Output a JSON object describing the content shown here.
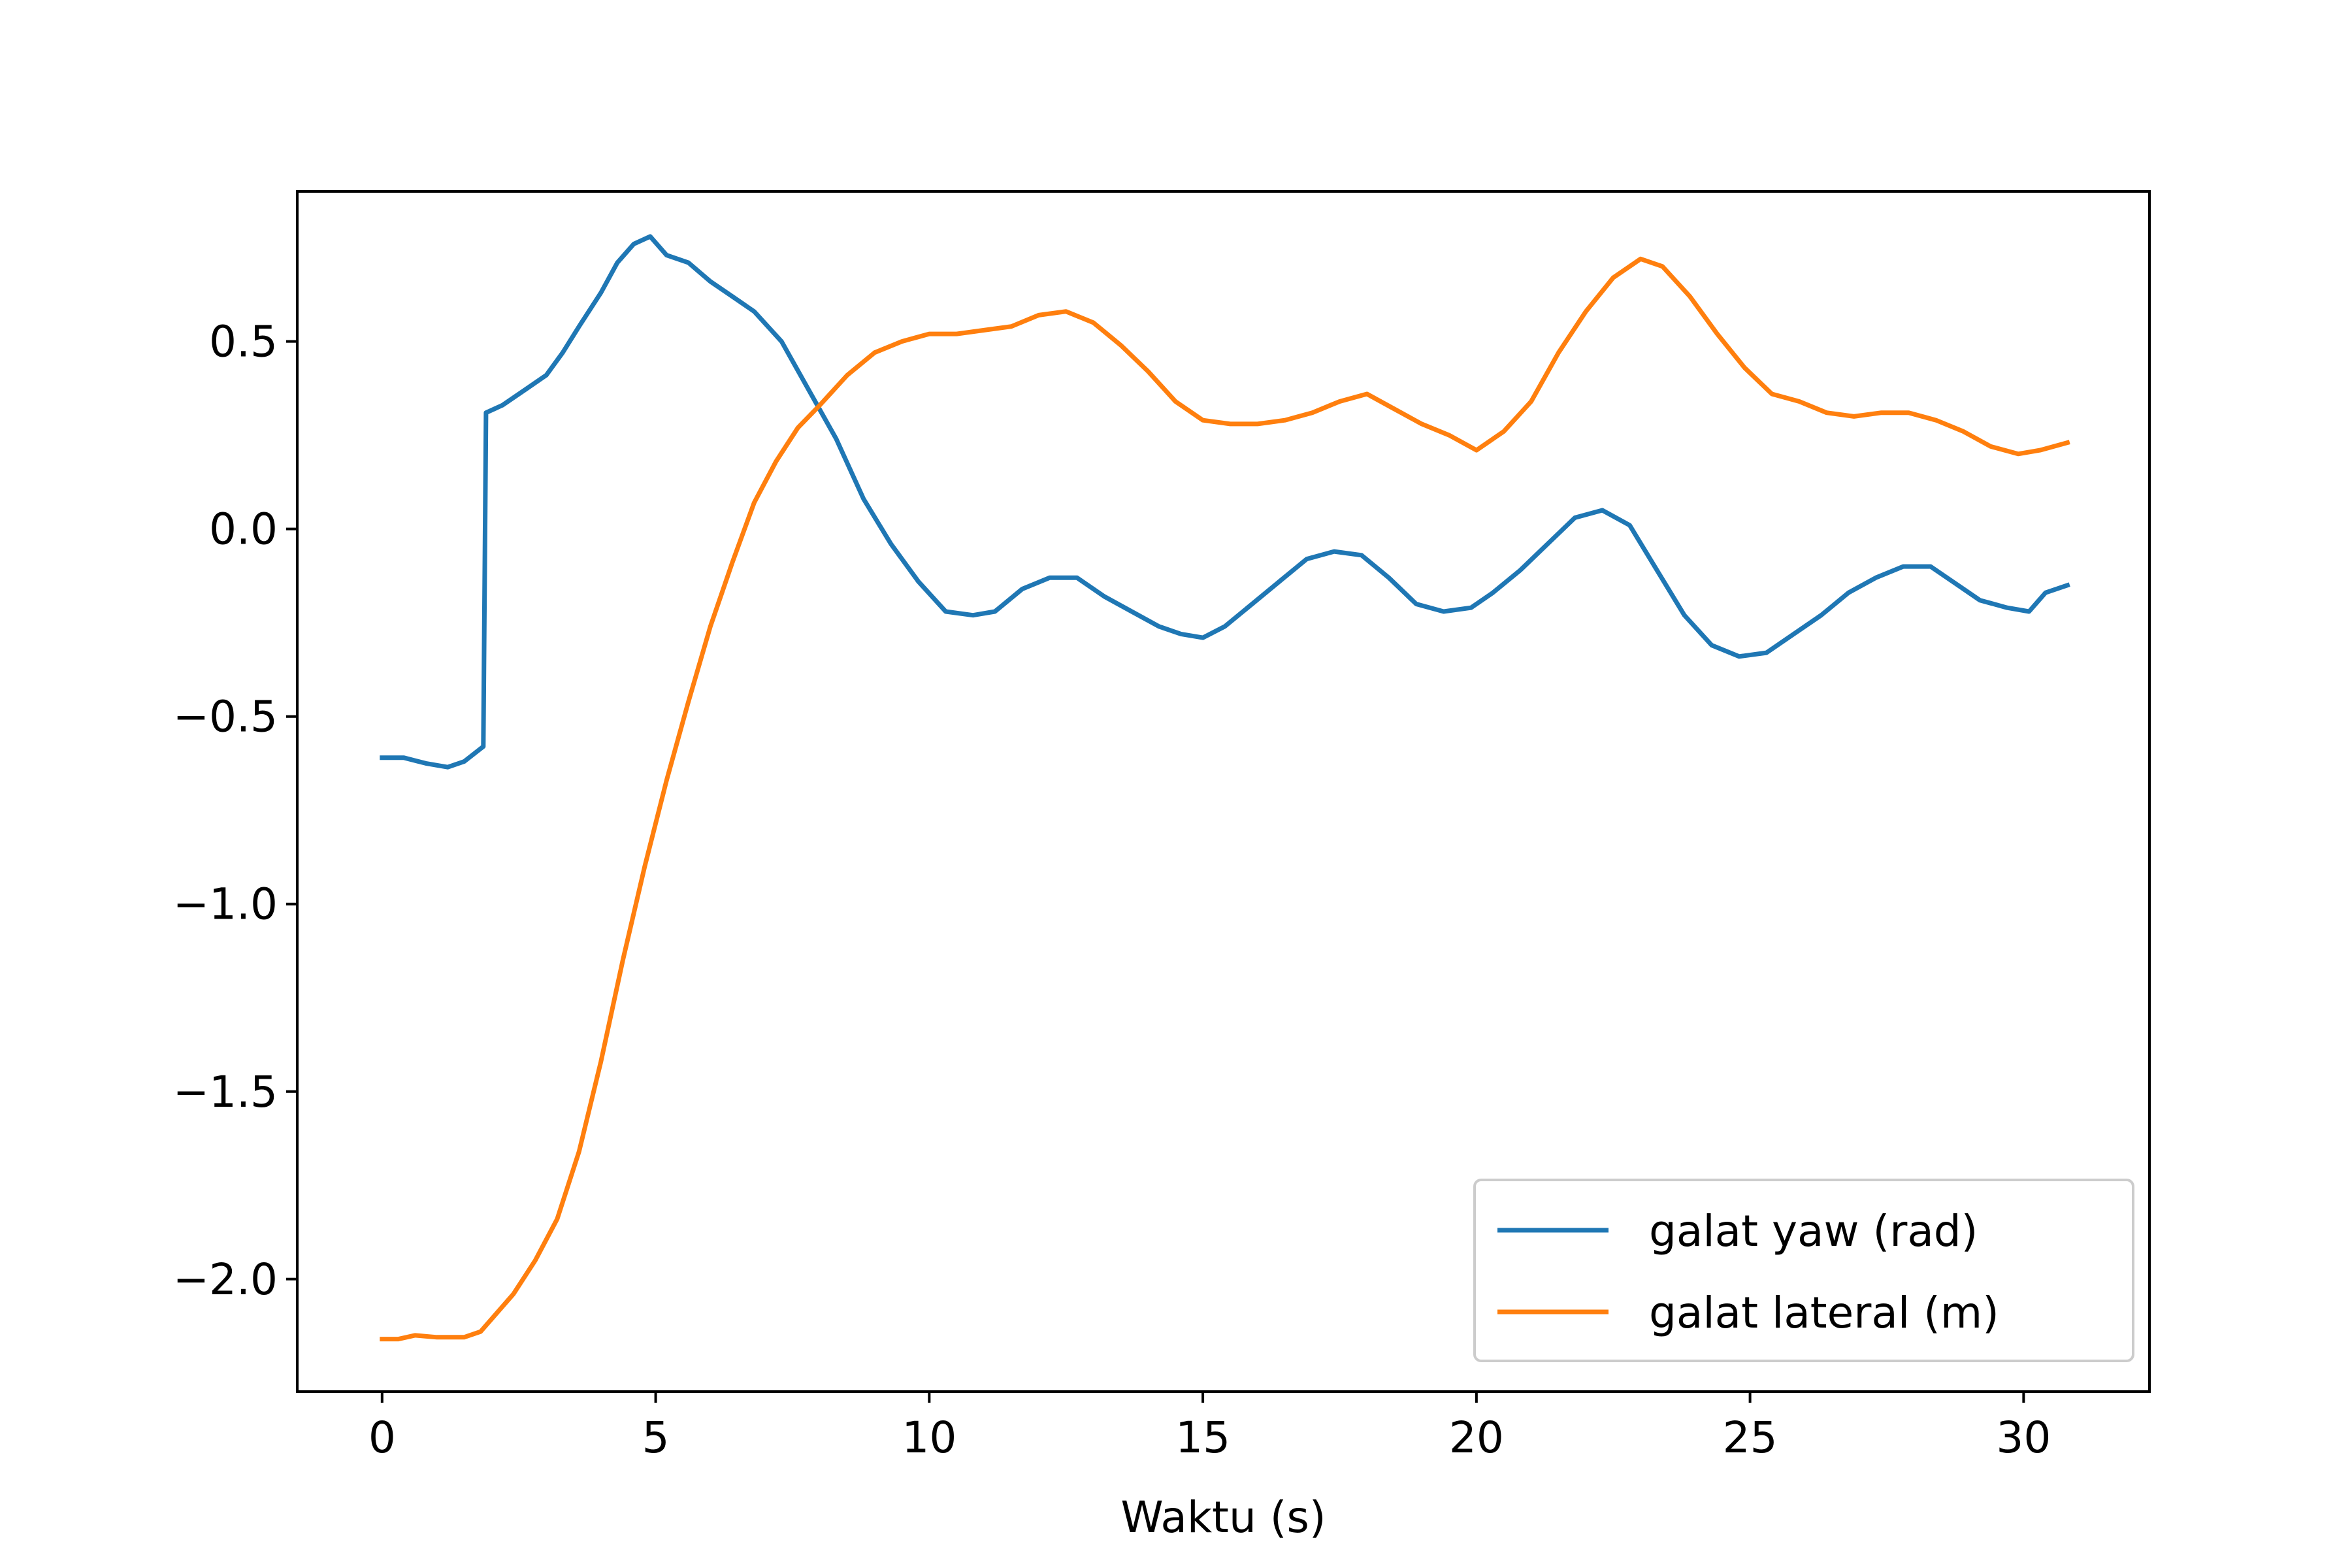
{
  "chart_data": {
    "type": "line",
    "title": "",
    "xlabel": "Waktu (s)",
    "ylabel": "",
    "xlim": [
      -1.55,
      32.3
    ],
    "ylim": [
      -2.3,
      0.9
    ],
    "xticks": [
      0,
      5,
      10,
      15,
      20,
      25,
      30
    ],
    "yticks": [
      -2.0,
      -1.5,
      -1.0,
      -0.5,
      0.0,
      0.5
    ],
    "xtick_labels": [
      "0",
      "5",
      "10",
      "15",
      "20",
      "25",
      "30"
    ],
    "ytick_labels": [
      "−2.0",
      "−1.5",
      "−1.0",
      "−0.5",
      "0.0",
      "0.5"
    ],
    "grid": false,
    "legend_position": "lower right",
    "series": [
      {
        "name": "galat yaw (rad)",
        "color": "#1f77b4",
        "points": [
          [
            0,
            -0.61
          ],
          [
            0.4,
            -0.61
          ],
          [
            0.8,
            -0.625
          ],
          [
            1.2,
            -0.635
          ],
          [
            1.5,
            -0.62
          ],
          [
            1.85,
            -0.58
          ],
          [
            1.9,
            0.31
          ],
          [
            2.2,
            0.33
          ],
          [
            2.6,
            0.37
          ],
          [
            3.0,
            0.41
          ],
          [
            3.3,
            0.47
          ],
          [
            3.6,
            0.54
          ],
          [
            4.0,
            0.63
          ],
          [
            4.3,
            0.71
          ],
          [
            4.6,
            0.76
          ],
          [
            4.9,
            0.78
          ],
          [
            5.2,
            0.73
          ],
          [
            5.6,
            0.71
          ],
          [
            6.0,
            0.66
          ],
          [
            6.4,
            0.62
          ],
          [
            6.8,
            0.58
          ],
          [
            7.3,
            0.5
          ],
          [
            7.8,
            0.37
          ],
          [
            8.3,
            0.24
          ],
          [
            8.8,
            0.08
          ],
          [
            9.3,
            -0.04
          ],
          [
            9.8,
            -0.14
          ],
          [
            10.3,
            -0.22
          ],
          [
            10.8,
            -0.23
          ],
          [
            11.2,
            -0.22
          ],
          [
            11.7,
            -0.16
          ],
          [
            12.2,
            -0.13
          ],
          [
            12.7,
            -0.13
          ],
          [
            13.2,
            -0.18
          ],
          [
            13.7,
            -0.22
          ],
          [
            14.2,
            -0.26
          ],
          [
            14.6,
            -0.28
          ],
          [
            15.0,
            -0.29
          ],
          [
            15.4,
            -0.26
          ],
          [
            15.9,
            -0.2
          ],
          [
            16.4,
            -0.14
          ],
          [
            16.9,
            -0.08
          ],
          [
            17.4,
            -0.06
          ],
          [
            17.9,
            -0.07
          ],
          [
            18.4,
            -0.13
          ],
          [
            18.9,
            -0.2
          ],
          [
            19.4,
            -0.22
          ],
          [
            19.9,
            -0.21
          ],
          [
            20.3,
            -0.17
          ],
          [
            20.8,
            -0.11
          ],
          [
            21.3,
            -0.04
          ],
          [
            21.8,
            0.03
          ],
          [
            22.3,
            0.05
          ],
          [
            22.8,
            0.01
          ],
          [
            23.3,
            -0.11
          ],
          [
            23.8,
            -0.23
          ],
          [
            24.3,
            -0.31
          ],
          [
            24.8,
            -0.34
          ],
          [
            25.3,
            -0.33
          ],
          [
            25.8,
            -0.28
          ],
          [
            26.3,
            -0.23
          ],
          [
            26.8,
            -0.17
          ],
          [
            27.3,
            -0.13
          ],
          [
            27.8,
            -0.1
          ],
          [
            28.3,
            -0.1
          ],
          [
            28.7,
            -0.14
          ],
          [
            29.2,
            -0.19
          ],
          [
            29.7,
            -0.21
          ],
          [
            30.1,
            -0.22
          ],
          [
            30.4,
            -0.17
          ],
          [
            30.8,
            -0.15
          ]
        ]
      },
      {
        "name": "galat lateral (m)",
        "color": "#ff7f0e",
        "points": [
          [
            0,
            -2.16
          ],
          [
            0.3,
            -2.16
          ],
          [
            0.6,
            -2.15
          ],
          [
            1.0,
            -2.155
          ],
          [
            1.5,
            -2.155
          ],
          [
            1.8,
            -2.14
          ],
          [
            2.1,
            -2.09
          ],
          [
            2.4,
            -2.04
          ],
          [
            2.8,
            -1.95
          ],
          [
            3.2,
            -1.84
          ],
          [
            3.6,
            -1.66
          ],
          [
            4.0,
            -1.42
          ],
          [
            4.4,
            -1.15
          ],
          [
            4.8,
            -0.9
          ],
          [
            5.2,
            -0.67
          ],
          [
            5.6,
            -0.46
          ],
          [
            6.0,
            -0.26
          ],
          [
            6.4,
            -0.09
          ],
          [
            6.8,
            0.07
          ],
          [
            7.2,
            0.18
          ],
          [
            7.6,
            0.27
          ],
          [
            8.0,
            0.33
          ],
          [
            8.5,
            0.41
          ],
          [
            9.0,
            0.47
          ],
          [
            9.5,
            0.5
          ],
          [
            10.0,
            0.52
          ],
          [
            10.5,
            0.52
          ],
          [
            11.0,
            0.53
          ],
          [
            11.5,
            0.54
          ],
          [
            12.0,
            0.57
          ],
          [
            12.5,
            0.58
          ],
          [
            13.0,
            0.55
          ],
          [
            13.5,
            0.49
          ],
          [
            14.0,
            0.42
          ],
          [
            14.5,
            0.34
          ],
          [
            15.0,
            0.29
          ],
          [
            15.5,
            0.28
          ],
          [
            16.0,
            0.28
          ],
          [
            16.5,
            0.29
          ],
          [
            17.0,
            0.31
          ],
          [
            17.5,
            0.34
          ],
          [
            18.0,
            0.36
          ],
          [
            18.5,
            0.32
          ],
          [
            19.0,
            0.28
          ],
          [
            19.5,
            0.25
          ],
          [
            20.0,
            0.21
          ],
          [
            20.5,
            0.26
          ],
          [
            21.0,
            0.34
          ],
          [
            21.5,
            0.47
          ],
          [
            22.0,
            0.58
          ],
          [
            22.5,
            0.67
          ],
          [
            23.0,
            0.72
          ],
          [
            23.4,
            0.7
          ],
          [
            23.9,
            0.62
          ],
          [
            24.4,
            0.52
          ],
          [
            24.9,
            0.43
          ],
          [
            25.4,
            0.36
          ],
          [
            25.9,
            0.34
          ],
          [
            26.4,
            0.31
          ],
          [
            26.9,
            0.3
          ],
          [
            27.4,
            0.31
          ],
          [
            27.9,
            0.31
          ],
          [
            28.4,
            0.29
          ],
          [
            28.9,
            0.26
          ],
          [
            29.4,
            0.22
          ],
          [
            29.9,
            0.2
          ],
          [
            30.3,
            0.21
          ],
          [
            30.8,
            0.23
          ]
        ]
      }
    ]
  }
}
